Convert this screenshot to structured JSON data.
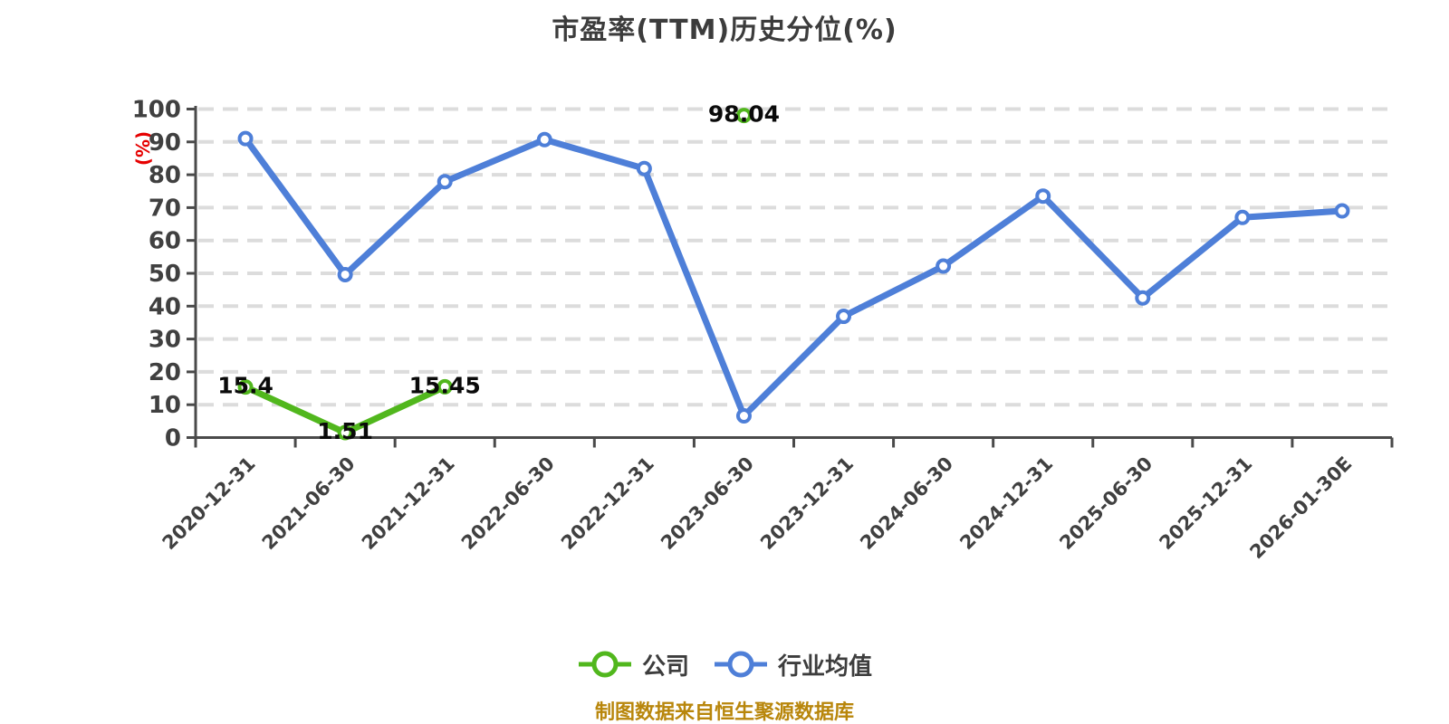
{
  "title": "市盈率(TTM)历史分位(%)",
  "y_axis": {
    "unit_label": "(%)",
    "ticks": [
      0,
      10,
      20,
      30,
      40,
      50,
      60,
      70,
      80,
      90,
      100
    ]
  },
  "x_axis": {
    "categories": [
      "2020-12-31",
      "2021-06-30",
      "2021-12-31",
      "2022-06-30",
      "2022-12-31",
      "2023-06-30",
      "2023-12-31",
      "2024-06-30",
      "2024-12-31",
      "2025-06-30",
      "2025-12-31",
      "2026-01-30E"
    ]
  },
  "legend": [
    {
      "label": "公司",
      "key": "company"
    },
    {
      "label": "行业均值",
      "key": "industry-average"
    }
  ],
  "footer": "制图数据来自恒生聚源数据库",
  "colors": {
    "background": "#ffffff",
    "title": "#3c3c3c",
    "axis": "#4a4a4a",
    "grid": "#dcdcdc",
    "tick_label": "#404040",
    "unit_label": "#e60000",
    "data_label": "#0a0a0a",
    "legend_text": "#3d3d3d",
    "footer": "#b8860b",
    "company": "#51b71d",
    "industry_average": "#4e7fd8",
    "marker_fill": "#ffffff"
  },
  "chart_data": {
    "type": "line",
    "title": "市盈率(TTM)历史分位(%)",
    "xlabel": "",
    "ylabel": "(%)",
    "ylim": [
      0,
      100
    ],
    "y_tick_step": 10,
    "grid": "horizontal dashed",
    "legend_position": "bottom",
    "x_label_rotation": 45,
    "categories": [
      "2020-12-31",
      "2021-06-30",
      "2021-12-31",
      "2022-06-30",
      "2022-12-31",
      "2023-06-30",
      "2023-12-31",
      "2024-06-30",
      "2024-12-31",
      "2025-06-30",
      "2025-12-31",
      "2026-01-30E"
    ],
    "series": [
      {
        "name": "公司",
        "key": "company",
        "color": "#51b71d",
        "show_point_labels": true,
        "values": [
          15.4,
          1.51,
          15.45,
          null,
          null,
          98.04,
          null,
          null,
          null,
          null,
          null,
          null
        ]
      },
      {
        "name": "行业均值",
        "key": "industry-average",
        "color": "#4e7fd8",
        "show_point_labels": false,
        "values": [
          91,
          49.6,
          77.9,
          90.7,
          81.9,
          6.6,
          36.9,
          52.2,
          73.5,
          42.5,
          67,
          69
        ]
      }
    ]
  }
}
